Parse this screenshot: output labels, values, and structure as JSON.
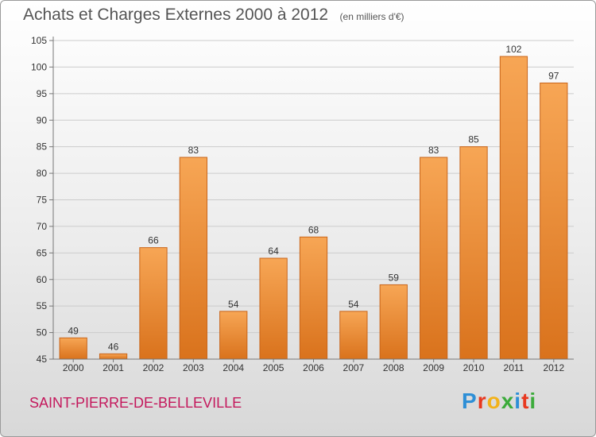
{
  "header": {
    "title": "Achats et Charges Externes 2000 à 2012",
    "unit": "(en milliers d'€)"
  },
  "footer": {
    "commune": "SAINT-PIERRE-DE-BELLEVILLE",
    "logo_letters": [
      "P",
      "r",
      "o",
      "x",
      "i",
      "t",
      "i"
    ],
    "logo_colors": [
      "#2e8fd6",
      "#e8381f",
      "#f2b21a",
      "#3cab3b",
      "#2e8fd6",
      "#e8381f",
      "#3cab3b"
    ]
  },
  "colors": {
    "bar_top": "#f7a655",
    "bar_bottom": "#d9721c",
    "bar_edge": "#c9651a",
    "axis_text": "#333333",
    "grid": "#cccccc"
  },
  "chart_data": {
    "type": "bar",
    "categories": [
      "2000",
      "2001",
      "2002",
      "2003",
      "2004",
      "2005",
      "2006",
      "2007",
      "2008",
      "2009",
      "2010",
      "2011",
      "2012"
    ],
    "values": [
      49,
      46,
      66,
      83,
      54,
      64,
      68,
      54,
      59,
      83,
      85,
      102,
      97
    ],
    "title": "Achats et Charges Externes 2000 à 2012",
    "subtitle": "(en milliers d'€)",
    "ylim": [
      45,
      105
    ],
    "yticks": [
      45,
      50,
      55,
      60,
      65,
      70,
      75,
      80,
      85,
      90,
      95,
      100,
      105
    ],
    "grid": true,
    "data_labels": true
  }
}
